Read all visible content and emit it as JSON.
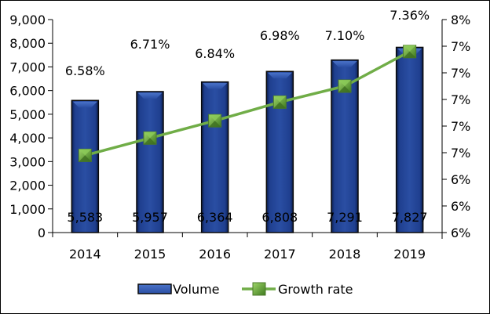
{
  "chart_data": {
    "type": "bar",
    "title": "",
    "xlabel": "",
    "ylabel": "",
    "categories": [
      "2014",
      "2015",
      "2016",
      "2017",
      "2018",
      "2019"
    ],
    "series": [
      {
        "name": "Volume",
        "type": "bar",
        "axis": "left",
        "values": [
          5583,
          5957,
          6364,
          6808,
          7291,
          7827
        ],
        "data_labels": [
          "5,583",
          "5,957",
          "6,364",
          "6,808",
          "7,291",
          "7,827"
        ],
        "color": "#1F3F8F"
      },
      {
        "name": "Growth rate",
        "type": "line",
        "axis": "right",
        "values": [
          6.58,
          6.71,
          6.84,
          6.98,
          7.1,
          7.36
        ],
        "data_labels": [
          "6.58%",
          "6.71%",
          "6.84%",
          "6.98%",
          "7.10%",
          "7.36%"
        ],
        "color": "#70AD47"
      }
    ],
    "y_left": {
      "ylim": [
        0,
        9000
      ],
      "ticks": [
        0,
        1000,
        2000,
        3000,
        4000,
        5000,
        6000,
        7000,
        8000,
        9000
      ],
      "tick_labels": [
        "0",
        "1,000",
        "2,000",
        "3,000",
        "4,000",
        "5,000",
        "6,000",
        "7,000",
        "8,000",
        "9,000"
      ]
    },
    "y_right": {
      "ylim": [
        6.0,
        7.6
      ],
      "ticks": [
        6.0,
        6.2,
        6.4,
        6.6,
        6.8,
        7.0,
        7.2,
        7.4,
        7.6
      ],
      "tick_labels": [
        "6%",
        "6%",
        "6%",
        "7%",
        "7%",
        "7%",
        "7%",
        "7%",
        "8%"
      ]
    },
    "grid": false,
    "legend": "bottom"
  }
}
